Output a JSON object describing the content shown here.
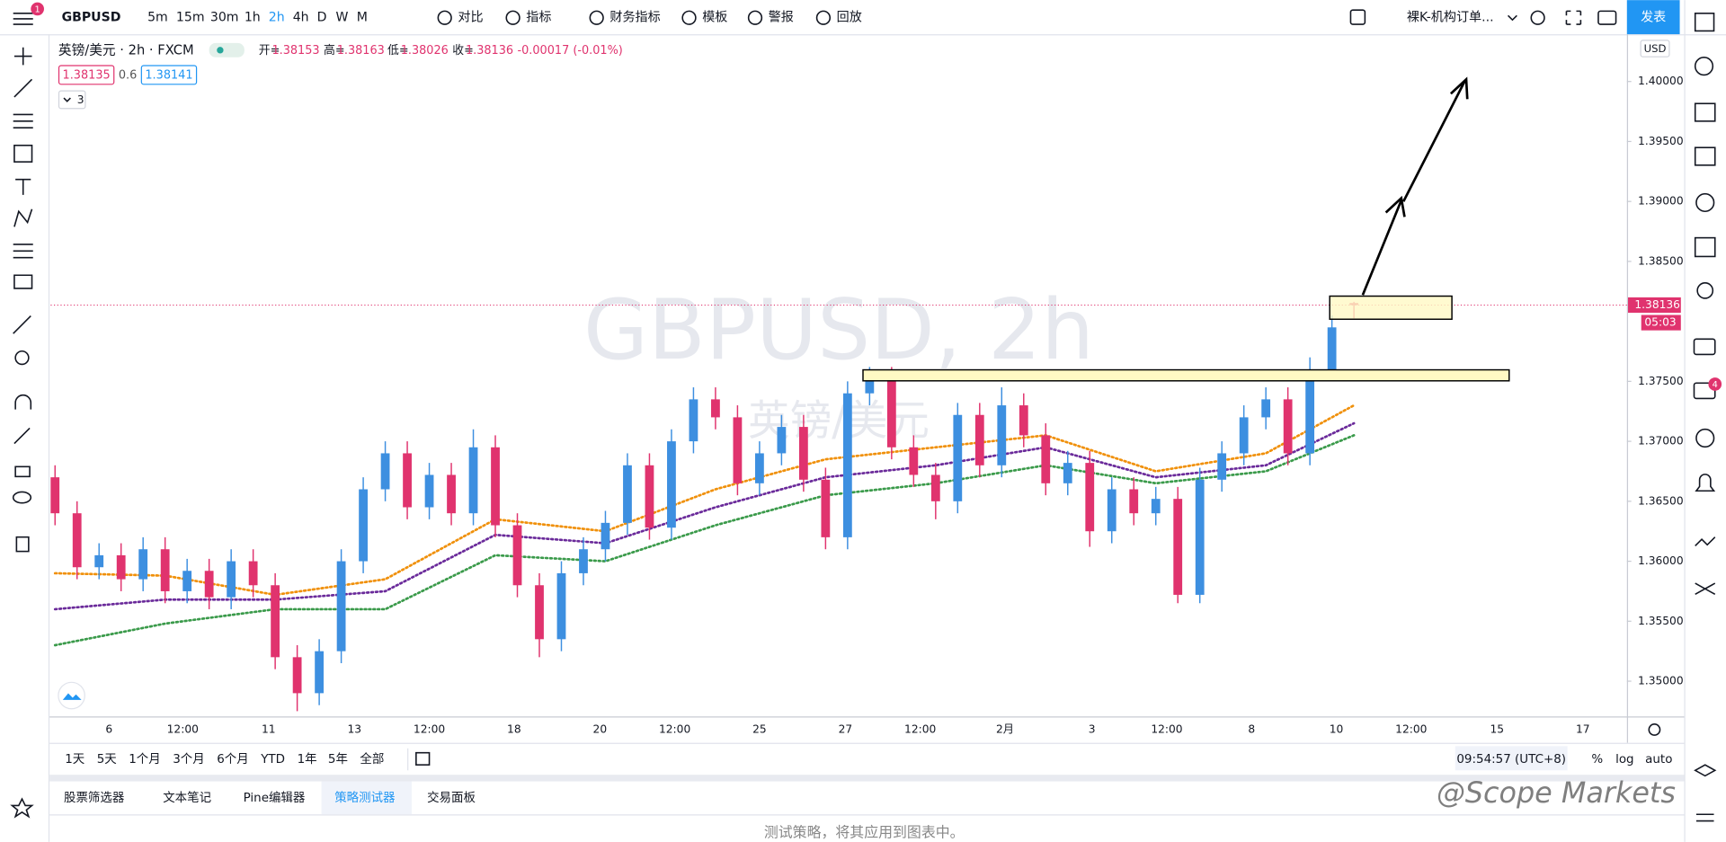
{
  "toolbar": {
    "symbol": "GBPUSD",
    "intervals": [
      "5m",
      "15m",
      "30m",
      "1h",
      "2h",
      "4h",
      "D",
      "W",
      "M"
    ],
    "buttons": [
      "对比",
      "指标",
      "财务指标",
      "模板",
      "警报",
      "回放"
    ],
    "layout": "裸K-机构订单...",
    "publish": "发表"
  },
  "legend": {
    "instrument": "英镑/美元 · 2h · FXCM",
    "open_label": "开=",
    "high_label": "高=",
    "low_label": "低=",
    "close_label": "收=",
    "change": "-0.00017 (-0.01%)",
    "bid": "1.38135",
    "spread": "0.6",
    "ask": "1.38141",
    "indicators_count": "3"
  },
  "watermark": {
    "symbol": "GBPUSD, 2h",
    "name": "英镑/美元"
  },
  "chart_data": {
    "type": "candlestick",
    "currency": "USD",
    "up_color": "#3d8fe0",
    "down_color": "#e0336e",
    "ylim": [
      1.34706,
      1.40385
    ],
    "yticks": [
      {
        "value": 1.35,
        "label": "1.35000"
      },
      {
        "value": 1.355,
        "label": "1.35500"
      },
      {
        "value": 1.36,
        "label": "1.36000"
      },
      {
        "value": 1.365,
        "label": "1.36500"
      },
      {
        "value": 1.37,
        "label": "1.37000"
      },
      {
        "value": 1.375,
        "label": "1.37500"
      },
      {
        "value": 1.385,
        "label": "1.38500"
      },
      {
        "value": 1.39,
        "label": "1.39000"
      },
      {
        "value": 1.395,
        "label": "1.39500"
      },
      {
        "value": 1.4,
        "label": "1.40000"
      }
    ],
    "x_labels": [
      "6",
      "12:00",
      "11",
      "13",
      "12:00",
      "18",
      "20",
      "12:00",
      "25",
      "27",
      "12:00",
      "2月",
      "3",
      "12:00",
      "8",
      "10",
      "12:00",
      "15",
      "17"
    ],
    "open": [
      1.367,
      1.364,
      1.3595,
      1.3605,
      1.3585,
      1.361,
      1.3575,
      1.3592,
      1.357,
      1.36,
      1.358,
      1.352,
      1.349,
      1.3525,
      1.36,
      1.366,
      1.369,
      1.3645,
      1.3672,
      1.364,
      1.3695,
      1.363,
      1.358,
      1.3535,
      1.359,
      1.361,
      1.3632,
      1.368,
      1.3628,
      1.37,
      1.3735,
      1.372,
      1.3665,
      1.369,
      1.3712,
      1.3668,
      1.362,
      1.374,
      1.3752,
      1.3695,
      1.3672,
      1.365,
      1.3722,
      1.368,
      1.373,
      1.3705,
      1.3665,
      1.3682,
      1.3625,
      1.366,
      1.364,
      1.3652,
      1.3572,
      1.3668,
      1.369,
      1.372,
      1.3735,
      1.369,
      1.376,
      1.38153
    ],
    "high": [
      1.368,
      1.365,
      1.3615,
      1.3615,
      1.362,
      1.362,
      1.3602,
      1.3602,
      1.361,
      1.361,
      1.359,
      1.353,
      1.3535,
      1.361,
      1.367,
      1.37,
      1.37,
      1.3682,
      1.3682,
      1.371,
      1.3705,
      1.364,
      1.359,
      1.36,
      1.362,
      1.3642,
      1.369,
      1.369,
      1.371,
      1.3745,
      1.3745,
      1.373,
      1.37,
      1.3722,
      1.3722,
      1.3678,
      1.375,
      1.3762,
      1.3762,
      1.3705,
      1.3682,
      1.3732,
      1.3732,
      1.3745,
      1.374,
      1.3715,
      1.3692,
      1.3692,
      1.367,
      1.367,
      1.3662,
      1.3662,
      1.3678,
      1.37,
      1.373,
      1.3745,
      1.3745,
      1.377,
      1.3805,
      1.38163
    ],
    "low": [
      1.363,
      1.3585,
      1.3585,
      1.3575,
      1.3575,
      1.3565,
      1.3565,
      1.356,
      1.356,
      1.357,
      1.351,
      1.3475,
      1.348,
      1.3515,
      1.359,
      1.365,
      1.3635,
      1.3635,
      1.363,
      1.363,
      1.362,
      1.357,
      1.352,
      1.3525,
      1.358,
      1.36,
      1.3622,
      1.3618,
      1.3618,
      1.369,
      1.371,
      1.3655,
      1.3655,
      1.368,
      1.3658,
      1.361,
      1.361,
      1.373,
      1.3685,
      1.3662,
      1.3635,
      1.364,
      1.367,
      1.367,
      1.3695,
      1.3655,
      1.3655,
      1.3612,
      1.3615,
      1.363,
      1.363,
      1.3565,
      1.3565,
      1.3658,
      1.368,
      1.371,
      1.368,
      1.368,
      1.375,
      1.38026
    ],
    "close": [
      1.364,
      1.3595,
      1.3605,
      1.3585,
      1.361,
      1.3575,
      1.3592,
      1.357,
      1.36,
      1.358,
      1.352,
      1.349,
      1.3525,
      1.36,
      1.366,
      1.369,
      1.3645,
      1.3672,
      1.364,
      1.3695,
      1.363,
      1.358,
      1.3535,
      1.359,
      1.361,
      1.3632,
      1.368,
      1.3628,
      1.37,
      1.3735,
      1.372,
      1.3665,
      1.369,
      1.3712,
      1.3668,
      1.362,
      1.374,
      1.3752,
      1.3695,
      1.3672,
      1.365,
      1.3722,
      1.368,
      1.373,
      1.3705,
      1.3665,
      1.3682,
      1.3625,
      1.366,
      1.364,
      1.3652,
      1.3572,
      1.3668,
      1.369,
      1.372,
      1.3735,
      1.369,
      1.376,
      1.3795,
      1.38136
    ],
    "series": [
      {
        "color": "#f0900a",
        "x": [
          0,
          5,
          10,
          15,
          20,
          25,
          30,
          35,
          40,
          45,
          50,
          55,
          59
        ],
        "values": [
          1.359,
          1.3588,
          1.3572,
          1.3585,
          1.3635,
          1.3625,
          1.366,
          1.3685,
          1.3695,
          1.3705,
          1.3675,
          1.369,
          1.373
        ]
      },
      {
        "color": "#6a2a9a",
        "x": [
          0,
          5,
          10,
          15,
          20,
          25,
          30,
          35,
          40,
          45,
          50,
          55,
          59
        ],
        "values": [
          1.356,
          1.3568,
          1.3568,
          1.3575,
          1.3622,
          1.3615,
          1.3645,
          1.367,
          1.368,
          1.3695,
          1.367,
          1.368,
          1.3715
        ]
      },
      {
        "color": "#3a9a4a",
        "x": [
          0,
          5,
          10,
          15,
          20,
          25,
          30,
          35,
          40,
          45,
          50,
          55,
          59
        ],
        "values": [
          1.353,
          1.3548,
          1.356,
          1.356,
          1.3605,
          1.36,
          1.363,
          1.3655,
          1.3665,
          1.368,
          1.3665,
          1.3675,
          1.3705
        ]
      }
    ],
    "price_label": {
      "value": 1.38136,
      "label": "1.38136"
    },
    "countdown": "05:03"
  },
  "bottom_bar": {
    "ranges": [
      "1天",
      "5天",
      "1个月",
      "3个月",
      "6个月",
      "YTD",
      "1年",
      "5年",
      "全部"
    ],
    "clock": "09:54:57 (UTC+8)",
    "percent": "%",
    "log": "log",
    "auto": "auto"
  },
  "panel": {
    "tabs": [
      "股票筛选器",
      "文本笔记",
      "Pine编辑器",
      "策略测试器",
      "交易面板"
    ],
    "message": "测试策略，将其应用到图表中。"
  },
  "notification_badge": "1",
  "chat_badge": "4",
  "credit": "@Scope Markets"
}
